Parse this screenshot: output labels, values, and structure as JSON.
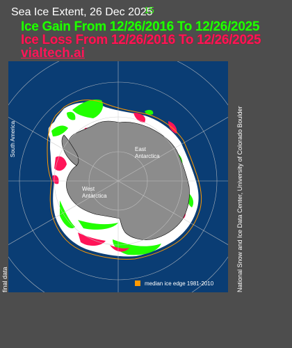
{
  "header": {
    "title": "Sea Ice Extent, 26 Dec 20",
    "title_year_tail": "25",
    "title_overprint": "15"
  },
  "overlay": {
    "gain_text": "Ice Gain From 12/26/2016 To 12/26/2025",
    "loss_text": "Ice Loss From 12/26/2016 To 12/26/2025",
    "credit_text": "vialtech.ai"
  },
  "map": {
    "labels": {
      "east": [
        "East",
        "Antarctica"
      ],
      "west": [
        "West",
        "Antarctica"
      ],
      "south_america": "South America"
    }
  },
  "legend": {
    "median_label": "median ice edge 1981-2010",
    "median_color": "#ff9900"
  },
  "footer": {
    "source": "National Snow and Ice Data Center, University of Colorado Boulder",
    "status": "final data"
  },
  "colors": {
    "ocean": "#0a3d74",
    "land": "#8c8c8c",
    "ice": "#ffffff",
    "gain": "#22ff00",
    "loss": "#ff1458",
    "background": "#4d4d4d"
  }
}
